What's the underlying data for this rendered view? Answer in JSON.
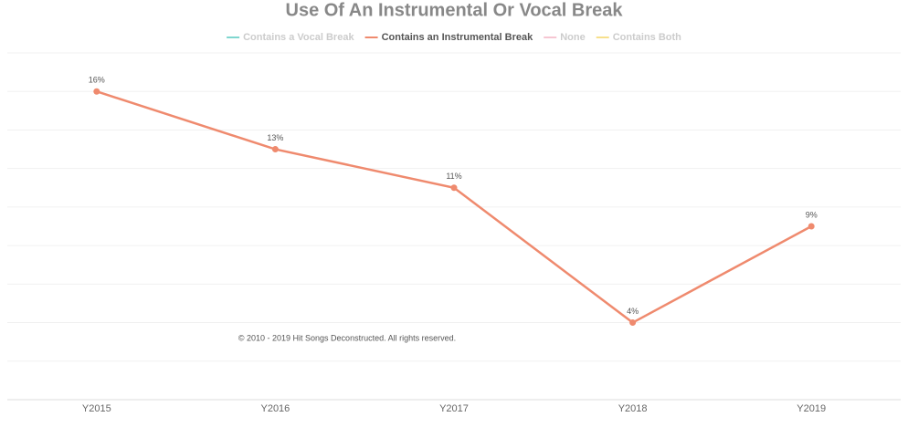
{
  "chart_data": {
    "type": "line",
    "title": "Use Of An Instrumental Or Vocal Break",
    "categories": [
      "Y2015",
      "Y2016",
      "Y2017",
      "Y2018",
      "Y2019"
    ],
    "series": [
      {
        "name": "Contains a Vocal Break",
        "color": "#7fd6cf",
        "hidden": true
      },
      {
        "name": "Contains an Instrumental Break",
        "color": "#ef8a6e",
        "values": [
          16,
          13,
          11,
          4,
          9
        ],
        "value_labels": [
          "16%",
          "13%",
          "11%",
          "4%",
          "9%"
        ]
      },
      {
        "name": "None",
        "color": "#f6c6d2",
        "hidden": true
      },
      {
        "name": "Contains Both",
        "color": "#f7e08c",
        "hidden": true
      }
    ],
    "ylim": [
      0,
      18
    ],
    "ygrid": [
      0,
      2,
      4,
      6,
      8,
      10,
      12,
      14,
      16,
      18
    ],
    "grid": true,
    "legend": "top",
    "annotation": "© 2010 - 2019 Hit Songs Deconstructed. All rights reserved."
  }
}
